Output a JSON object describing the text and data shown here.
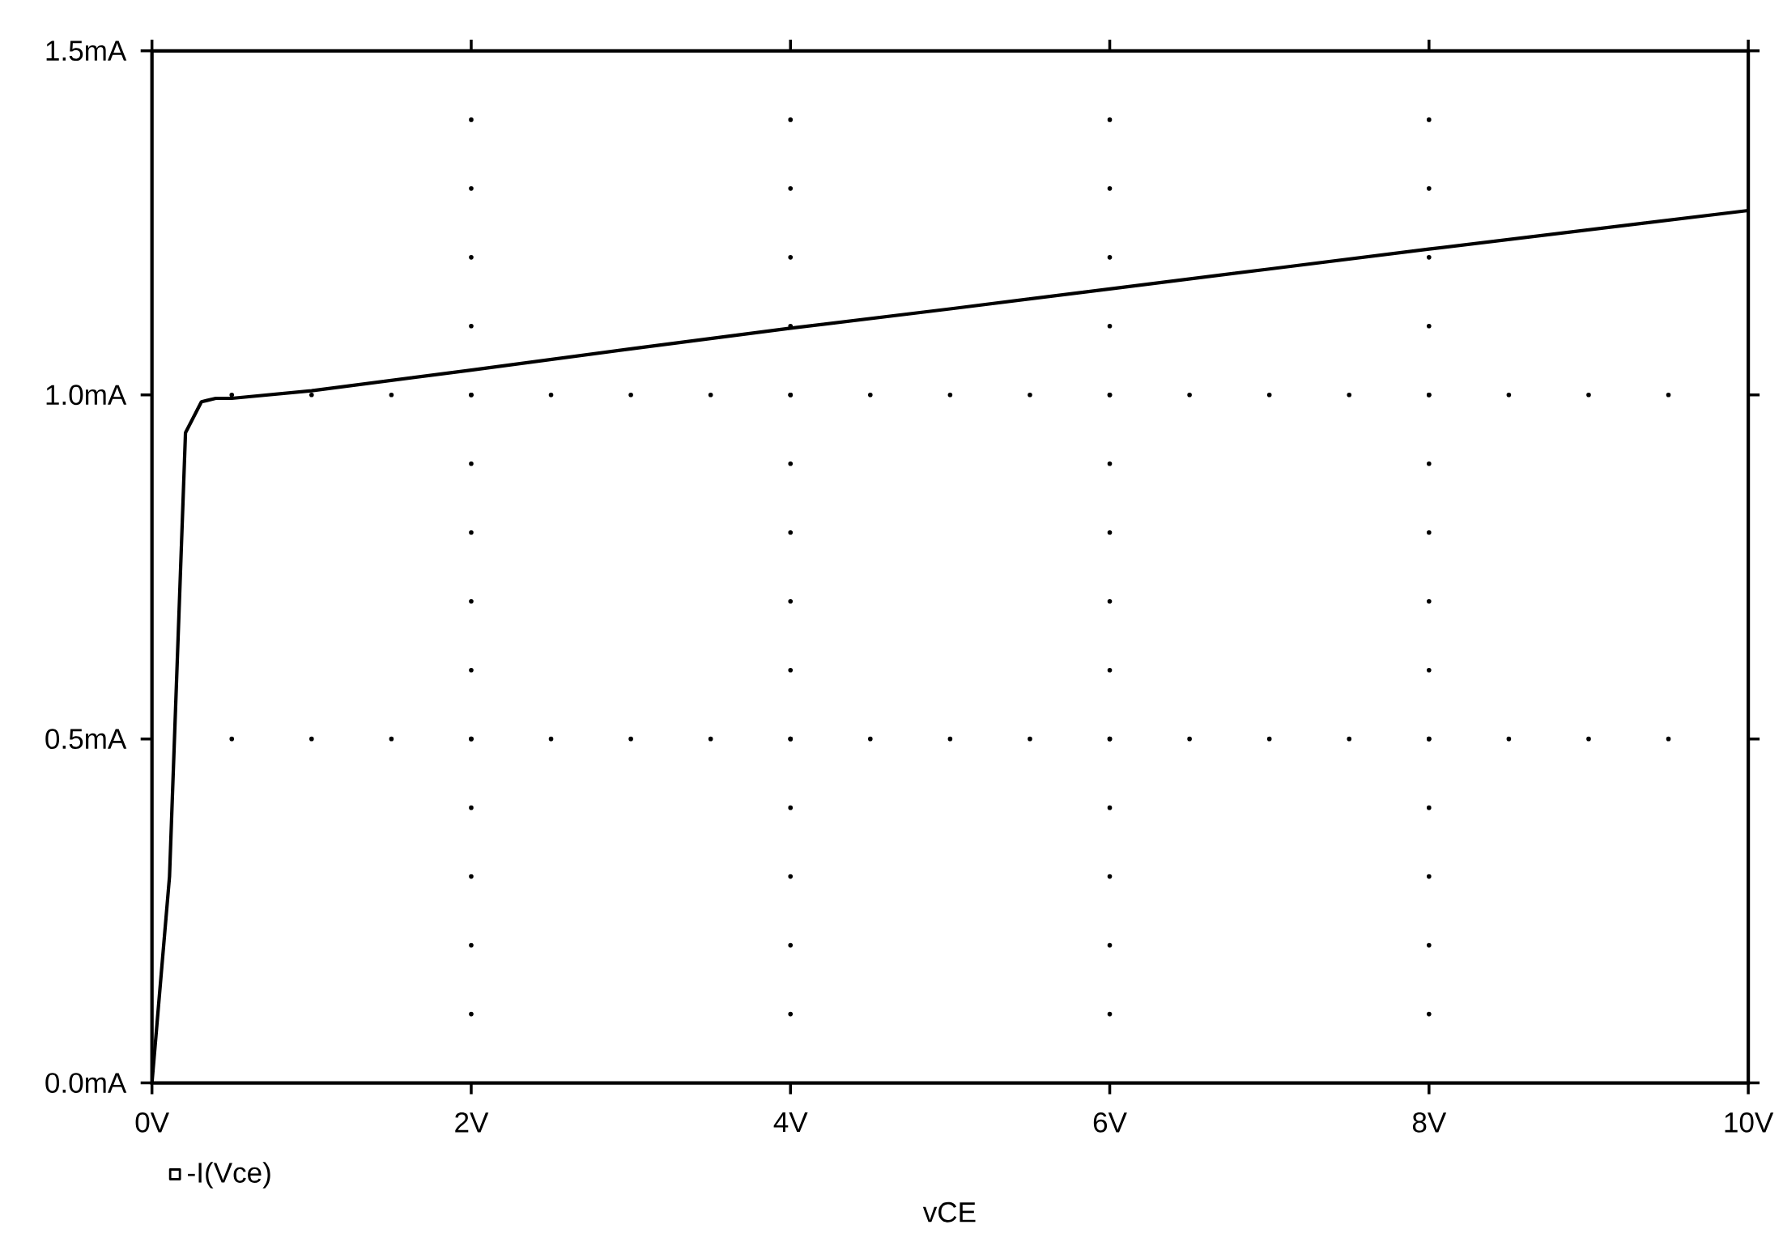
{
  "chart_data": {
    "type": "line",
    "xlabel": "vCE",
    "x": [
      0,
      0.11,
      0.21,
      0.31,
      0.4,
      0.5,
      1,
      2,
      3,
      4,
      5,
      6,
      7,
      8,
      9,
      10
    ],
    "series": [
      {
        "name": "-I(Vce)",
        "color": "#000000",
        "values": [
          0,
          0.3,
          0.945,
          0.99,
          0.995,
          0.995,
          1.006,
          1.036,
          1.067,
          1.097,
          1.125,
          1.154,
          1.183,
          1.212,
          1.24,
          1.268
        ]
      }
    ],
    "xlim": [
      0,
      10
    ],
    "ylim": [
      0,
      1.5
    ],
    "xticks": [
      {
        "value": 0,
        "label": "0V"
      },
      {
        "value": 2,
        "label": "2V"
      },
      {
        "value": 4,
        "label": "4V"
      },
      {
        "value": 6,
        "label": "6V"
      },
      {
        "value": 8,
        "label": "8V"
      },
      {
        "value": 10,
        "label": "10V"
      }
    ],
    "yticks": [
      {
        "value": 0,
        "label": "0.0mA"
      },
      {
        "value": 0.5,
        "label": "0.5mA"
      },
      {
        "value": 1.0,
        "label": "1.0mA"
      },
      {
        "value": 1.5,
        "label": "1.5mA"
      }
    ],
    "grid": true,
    "legend": "bottom left"
  }
}
